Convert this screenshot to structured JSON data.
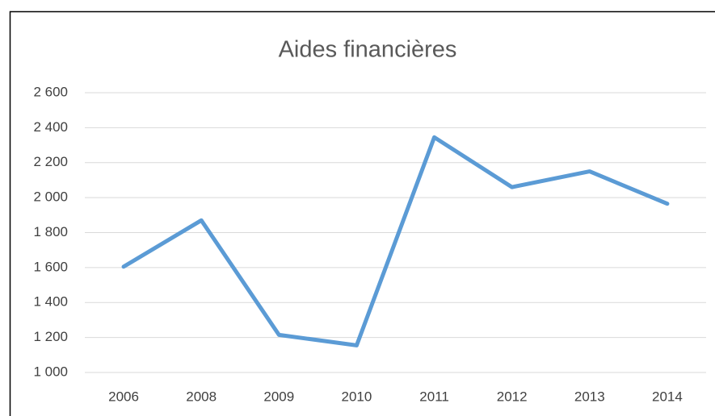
{
  "chart_data": {
    "type": "line",
    "title": "Aides financières",
    "categories": [
      "2006",
      "2008",
      "2009",
      "2010",
      "2011",
      "2012",
      "2013",
      "2014"
    ],
    "series": [
      {
        "name": "Aides financières",
        "color": "#5b9bd5",
        "values": [
          1605,
          1870,
          1215,
          1155,
          2345,
          2060,
          2150,
          1965
        ]
      }
    ],
    "ylim": [
      1000,
      2600
    ],
    "yticks": [
      {
        "value": 1000,
        "label": "1 000"
      },
      {
        "value": 1200,
        "label": "1 200"
      },
      {
        "value": 1400,
        "label": "1 400"
      },
      {
        "value": 1600,
        "label": "1 600"
      },
      {
        "value": 1800,
        "label": "1 800"
      },
      {
        "value": 2000,
        "label": "2 000"
      },
      {
        "value": 2200,
        "label": "2 200"
      },
      {
        "value": 2400,
        "label": "2 400"
      },
      {
        "value": 2600,
        "label": "2 600"
      }
    ],
    "grid": true
  }
}
